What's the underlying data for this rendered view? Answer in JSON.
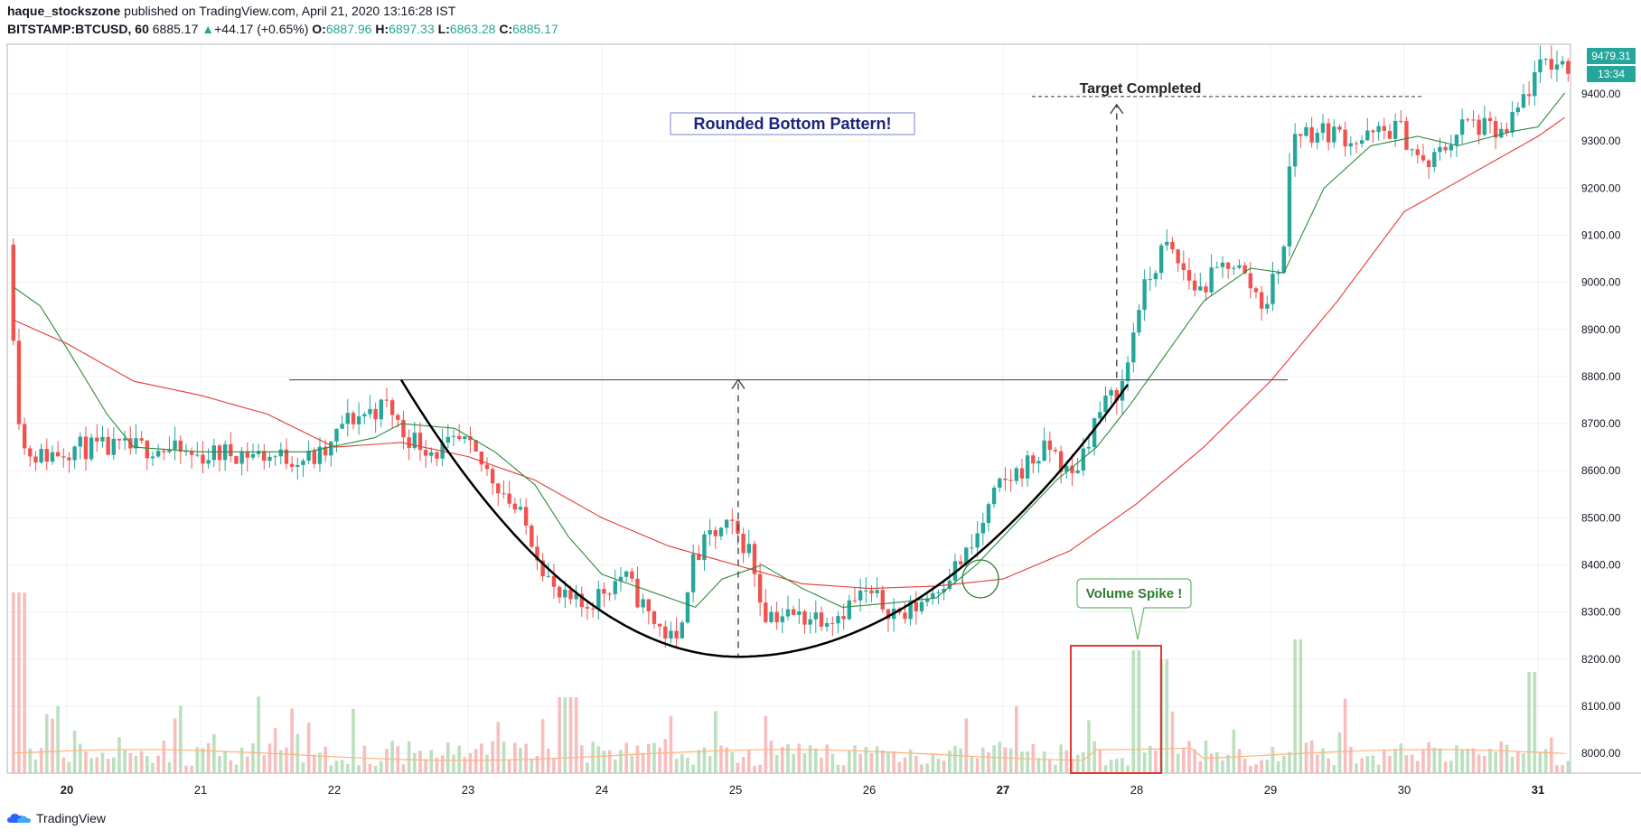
{
  "header": {
    "author": "haque_stockszone",
    "published_text": "published on TradingView.com, April 21, 2020 13:16:28 IST",
    "symbol": "BITSTAMP:BTCUSD, 60",
    "last": "6885.17",
    "change": "+44.17 (+0.65%)",
    "o_label": "O:",
    "o_value": "6887.96",
    "h_label": "H:",
    "h_value": "6897.33",
    "l_label": "L:",
    "l_value": "6863.28",
    "c_label": "C:",
    "c_value": "6885.17"
  },
  "footer": {
    "brand": "TradingView"
  },
  "colors": {
    "up": "#26a69a",
    "down": "#ef5350",
    "ma_fast": "#2e8b3a",
    "ma_slow": "#e53935",
    "badge": "#26a69a",
    "annotation_text": "#1a237e",
    "volume_box": "#e53935",
    "callout": "#2e7d32"
  },
  "chart_data": {
    "type": "candlestick",
    "x_ticks": [
      "20",
      "21",
      "22",
      "23",
      "24",
      "25",
      "26",
      "27",
      "28",
      "29",
      "30",
      "31"
    ],
    "y_ticks": [
      "9400.00",
      "9300.00",
      "9200.00",
      "9100.00",
      "9000.00",
      "8900.00",
      "8800.00",
      "8700.00",
      "8600.00",
      "8500.00",
      "8400.00",
      "8300.00",
      "8200.00",
      "8100.00",
      "8000.00"
    ],
    "ylim": [
      7950,
      9580
    ],
    "last_price_badge": "9479.31",
    "countdown_badge": "13:34",
    "resistance_level": 8793,
    "target_level": 9385,
    "bottom_level": 8205,
    "annotations": {
      "pattern": "Rounded Bottom Pattern!",
      "target": "Target Completed",
      "volume": "Volume Spike !"
    },
    "price_path": [
      [
        19.6,
        9080
      ],
      [
        19.7,
        8650
      ],
      [
        19.85,
        8630
      ],
      [
        20.1,
        8650
      ],
      [
        20.4,
        8645
      ],
      [
        20.7,
        8650
      ],
      [
        21.0,
        8630
      ],
      [
        21.3,
        8640
      ],
      [
        21.6,
        8630
      ],
      [
        21.9,
        8625
      ],
      [
        22.0,
        8640
      ],
      [
        22.1,
        8700
      ],
      [
        22.25,
        8720
      ],
      [
        22.45,
        8740
      ],
      [
        22.55,
        8680
      ],
      [
        22.8,
        8640
      ],
      [
        23.0,
        8660
      ],
      [
        23.3,
        8560
      ],
      [
        23.5,
        8470
      ],
      [
        23.7,
        8330
      ],
      [
        23.9,
        8310
      ],
      [
        24.2,
        8380
      ],
      [
        24.4,
        8290
      ],
      [
        24.6,
        8230
      ],
      [
        24.7,
        8390
      ],
      [
        24.85,
        8460
      ],
      [
        25.0,
        8480
      ],
      [
        25.15,
        8430
      ],
      [
        25.25,
        8300
      ],
      [
        25.5,
        8290
      ],
      [
        25.8,
        8295
      ],
      [
        26.0,
        8340
      ],
      [
        26.3,
        8290
      ],
      [
        26.5,
        8340
      ],
      [
        26.8,
        8430
      ],
      [
        27.0,
        8560
      ],
      [
        27.2,
        8610
      ],
      [
        27.4,
        8650
      ],
      [
        27.55,
        8580
      ],
      [
        27.75,
        8720
      ],
      [
        27.95,
        8790
      ],
      [
        28.05,
        8950
      ],
      [
        28.25,
        9080
      ],
      [
        28.5,
        8980
      ],
      [
        28.75,
        9050
      ],
      [
        29.0,
        8950
      ],
      [
        29.15,
        9080
      ],
      [
        29.2,
        9320
      ],
      [
        29.5,
        9320
      ],
      [
        29.7,
        9300
      ],
      [
        30.0,
        9330
      ],
      [
        30.2,
        9240
      ],
      [
        30.5,
        9340
      ],
      [
        30.8,
        9310
      ],
      [
        30.95,
        9400
      ],
      [
        31.1,
        9470
      ],
      [
        31.25,
        9460
      ]
    ],
    "ma_fast": [
      [
        19.6,
        8990
      ],
      [
        19.8,
        8950
      ],
      [
        20.0,
        8860
      ],
      [
        20.3,
        8720
      ],
      [
        20.5,
        8650
      ],
      [
        21.0,
        8640
      ],
      [
        21.8,
        8640
      ],
      [
        22.3,
        8670
      ],
      [
        22.5,
        8700
      ],
      [
        22.9,
        8690
      ],
      [
        23.2,
        8640
      ],
      [
        23.5,
        8570
      ],
      [
        23.75,
        8460
      ],
      [
        24.0,
        8380
      ],
      [
        24.4,
        8340
      ],
      [
        24.7,
        8310
      ],
      [
        24.9,
        8370
      ],
      [
        25.2,
        8400
      ],
      [
        25.5,
        8350
      ],
      [
        25.8,
        8310
      ],
      [
        26.2,
        8320
      ],
      [
        26.5,
        8330
      ],
      [
        26.8,
        8400
      ],
      [
        27.1,
        8490
      ],
      [
        27.4,
        8580
      ],
      [
        27.7,
        8650
      ],
      [
        27.95,
        8740
      ],
      [
        28.2,
        8840
      ],
      [
        28.5,
        8960
      ],
      [
        28.85,
        9030
      ],
      [
        29.1,
        9020
      ],
      [
        29.4,
        9200
      ],
      [
        29.75,
        9290
      ],
      [
        30.1,
        9310
      ],
      [
        30.4,
        9290
      ],
      [
        30.8,
        9320
      ],
      [
        31.0,
        9330
      ],
      [
        31.25,
        9420
      ]
    ],
    "ma_slow": [
      [
        19.6,
        8920
      ],
      [
        20.0,
        8870
      ],
      [
        20.5,
        8790
      ],
      [
        21.0,
        8760
      ],
      [
        21.5,
        8720
      ],
      [
        22.0,
        8650
      ],
      [
        22.5,
        8660
      ],
      [
        23.0,
        8630
      ],
      [
        23.5,
        8580
      ],
      [
        24.0,
        8500
      ],
      [
        24.5,
        8440
      ],
      [
        25.0,
        8400
      ],
      [
        25.5,
        8360
      ],
      [
        26.0,
        8350
      ],
      [
        26.5,
        8355
      ],
      [
        27.0,
        8370
      ],
      [
        27.5,
        8430
      ],
      [
        28.0,
        8530
      ],
      [
        28.5,
        8650
      ],
      [
        29.0,
        8790
      ],
      [
        29.5,
        8960
      ],
      [
        30.0,
        9150
      ],
      [
        30.5,
        9230
      ],
      [
        31.0,
        9310
      ],
      [
        31.25,
        9360
      ]
    ]
  }
}
